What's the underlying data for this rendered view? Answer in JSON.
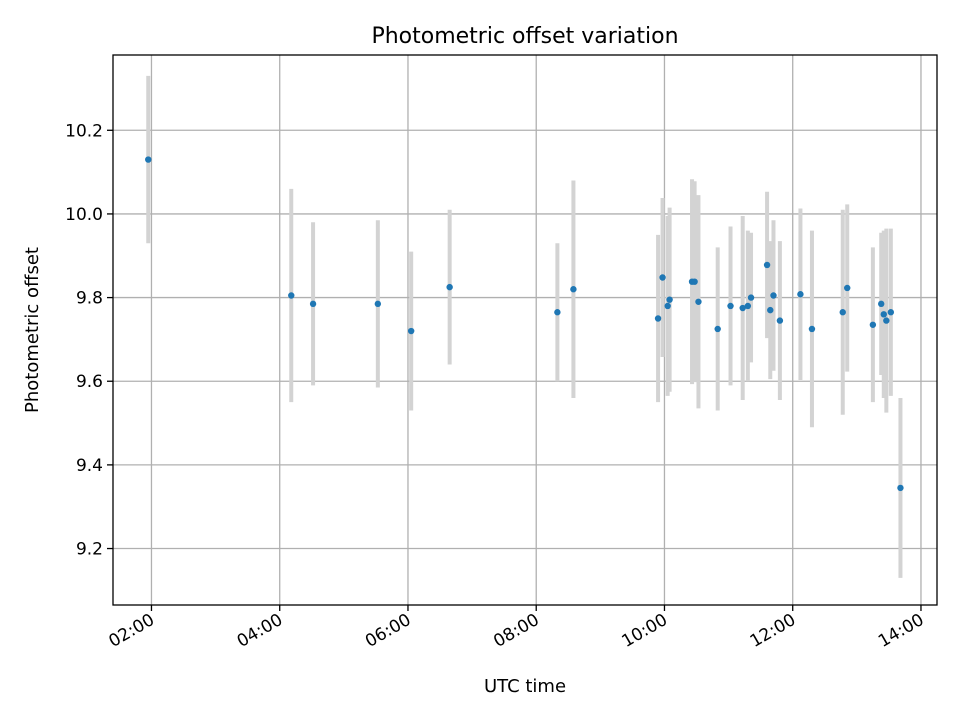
{
  "chart_data": {
    "type": "scatter",
    "title": "Photometric offset variation",
    "xlabel": "UTC time",
    "ylabel": "Photometric offset",
    "x_unit": "hours",
    "xlim": [
      1.4,
      14.25
    ],
    "ylim": [
      9.065,
      10.38
    ],
    "x_ticks": [
      2,
      4,
      6,
      8,
      10,
      12,
      14
    ],
    "x_tick_labels": [
      "02:00",
      "04:00",
      "06:00",
      "08:00",
      "10:00",
      "12:00",
      "14:00"
    ],
    "y_ticks": [
      9.2,
      9.4,
      9.6,
      9.8,
      10.0,
      10.2
    ],
    "y_tick_labels": [
      "9.2",
      "9.4",
      "9.6",
      "9.8",
      "10.0",
      "10.2"
    ],
    "grid": true,
    "colors": {
      "points": "#1f77b4",
      "errorbars": "#d3d3d3",
      "grid": "#b0b0b0"
    },
    "series": [
      {
        "points": [
          {
            "x": 1.95,
            "y": 10.13,
            "err": 0.2
          },
          {
            "x": 4.18,
            "y": 9.805,
            "err": 0.255
          },
          {
            "x": 4.52,
            "y": 9.785,
            "err": 0.195
          },
          {
            "x": 5.53,
            "y": 9.785,
            "err": 0.2
          },
          {
            "x": 6.05,
            "y": 9.72,
            "err": 0.19
          },
          {
            "x": 6.65,
            "y": 9.825,
            "err": 0.185
          },
          {
            "x": 8.33,
            "y": 9.765,
            "err": 0.165
          },
          {
            "x": 8.58,
            "y": 9.82,
            "err": 0.26
          },
          {
            "x": 9.9,
            "y": 9.75,
            "err": 0.2
          },
          {
            "x": 9.97,
            "y": 9.848,
            "err": 0.19
          },
          {
            "x": 10.05,
            "y": 9.78,
            "err": 0.215
          },
          {
            "x": 10.08,
            "y": 9.795,
            "err": 0.22
          },
          {
            "x": 10.43,
            "y": 9.838,
            "err": 0.245
          },
          {
            "x": 10.47,
            "y": 9.838,
            "err": 0.24
          },
          {
            "x": 10.53,
            "y": 9.79,
            "err": 0.255
          },
          {
            "x": 10.83,
            "y": 9.725,
            "err": 0.195
          },
          {
            "x": 11.03,
            "y": 9.78,
            "err": 0.19
          },
          {
            "x": 11.22,
            "y": 9.775,
            "err": 0.22
          },
          {
            "x": 11.3,
            "y": 9.78,
            "err": 0.18
          },
          {
            "x": 11.35,
            "y": 9.8,
            "err": 0.155
          },
          {
            "x": 11.6,
            "y": 9.878,
            "err": 0.175
          },
          {
            "x": 11.65,
            "y": 9.77,
            "err": 0.165
          },
          {
            "x": 11.7,
            "y": 9.805,
            "err": 0.18
          },
          {
            "x": 11.8,
            "y": 9.745,
            "err": 0.19
          },
          {
            "x": 12.12,
            "y": 9.808,
            "err": 0.205
          },
          {
            "x": 12.3,
            "y": 9.725,
            "err": 0.235
          },
          {
            "x": 12.78,
            "y": 9.765,
            "err": 0.245
          },
          {
            "x": 12.85,
            "y": 9.823,
            "err": 0.2
          },
          {
            "x": 13.25,
            "y": 9.735,
            "err": 0.185
          },
          {
            "x": 13.38,
            "y": 9.785,
            "err": 0.17
          },
          {
            "x": 13.42,
            "y": 9.76,
            "err": 0.2
          },
          {
            "x": 13.46,
            "y": 9.745,
            "err": 0.22
          },
          {
            "x": 13.53,
            "y": 9.765,
            "err": 0.2
          },
          {
            "x": 13.68,
            "y": 9.345,
            "err": 0.215
          }
        ]
      }
    ]
  }
}
